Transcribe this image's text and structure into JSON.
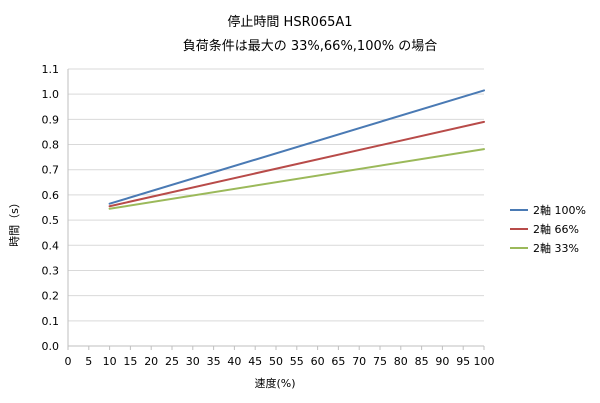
{
  "chart_data": {
    "type": "line",
    "title": "停止時間 HSR065A1",
    "subtitle": "負荷条件は最大の 33%,66%,100% の場合",
    "xlabel": "速度(%)",
    "ylabel": "時間（s）",
    "xlim": [
      0,
      100
    ],
    "ylim": [
      0.0,
      1.1
    ],
    "x_ticks": [
      "0",
      "5",
      "10",
      "15",
      "20",
      "25",
      "30",
      "35",
      "40",
      "45",
      "50",
      "55",
      "60",
      "65",
      "70",
      "75",
      "80",
      "85",
      "90",
      "95",
      "100"
    ],
    "y_ticks": [
      "0.0",
      "0.1",
      "0.2",
      "0.3",
      "0.4",
      "0.5",
      "0.6",
      "0.7",
      "0.8",
      "0.9",
      "1.0",
      "1.1"
    ],
    "grid": "horizontal",
    "legend_position": "right",
    "series": [
      {
        "name": "2軸 100%",
        "color": "#4a7ab4",
        "x": [
          10,
          100
        ],
        "y": [
          0.565,
          1.015
        ]
      },
      {
        "name": "2軸 66%",
        "color": "#b84b49",
        "x": [
          10,
          100
        ],
        "y": [
          0.555,
          0.89
        ]
      },
      {
        "name": "2軸 33%",
        "color": "#9bb95a",
        "x": [
          10,
          100
        ],
        "y": [
          0.545,
          0.782
        ]
      }
    ]
  }
}
